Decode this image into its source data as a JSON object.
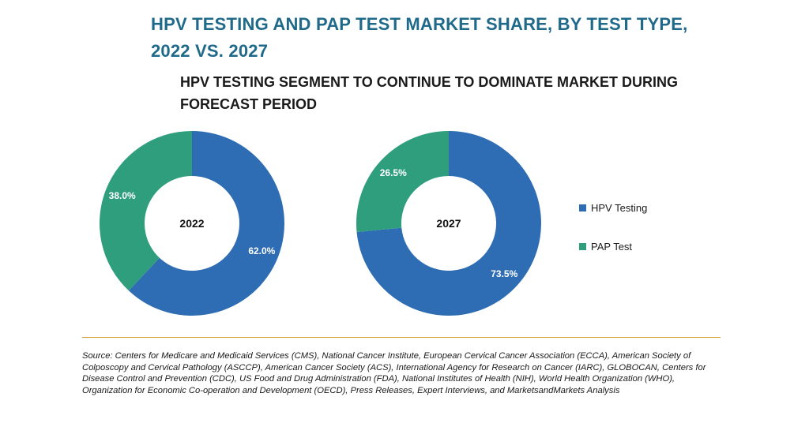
{
  "title": "HPV TESTING AND PAP TEST MARKET SHARE, BY TEST TYPE, 2022 VS. 2027",
  "subtitle": "HPV TESTING SEGMENT TO CONTINUE TO DOMINATE MARKET DURING FORECAST PERIOD",
  "source": "Source: Centers for Medicare and Medicaid Services (CMS), National Cancer Institute, European Cervical Cancer Association (ECCA), American Society of Colposcopy and Cervical Pathology (ASCCP), American Cancer Society (ACS), International Agency for Research on Cancer (IARC), GLOBOCAN, Centers for Disease Control and Prevention (CDC), US Food and Drug Administration (FDA), National Institutes of Health (NIH), World Health Organization (WHO), Organization for Economic Co-operation and Development (OECD), Press Releases, Expert Interviews, and MarketsandMarkets Analysis",
  "colors": {
    "hpv": "#2e6db3",
    "pap": "#2e9e7d",
    "title": "#1f6a8a",
    "divider": "#d6a43a"
  },
  "chart_data": {
    "type": "pie",
    "style": "donut",
    "title": "HPV TESTING AND PAP TEST MARKET SHARE, BY TEST TYPE, 2022 VS. 2027",
    "legend_position": "right",
    "legend": [
      "HPV Testing",
      "PAP Test"
    ],
    "charts": [
      {
        "center_label": "2022",
        "slices": [
          {
            "name": "HPV Testing",
            "value": 62.0,
            "label": "62.0%"
          },
          {
            "name": "PAP Test",
            "value": 38.0,
            "label": "38.0%"
          }
        ]
      },
      {
        "center_label": "2027",
        "slices": [
          {
            "name": "HPV Testing",
            "value": 73.5,
            "label": "73.5%"
          },
          {
            "name": "PAP Test",
            "value": 26.5,
            "label": "26.5%"
          }
        ]
      }
    ]
  }
}
